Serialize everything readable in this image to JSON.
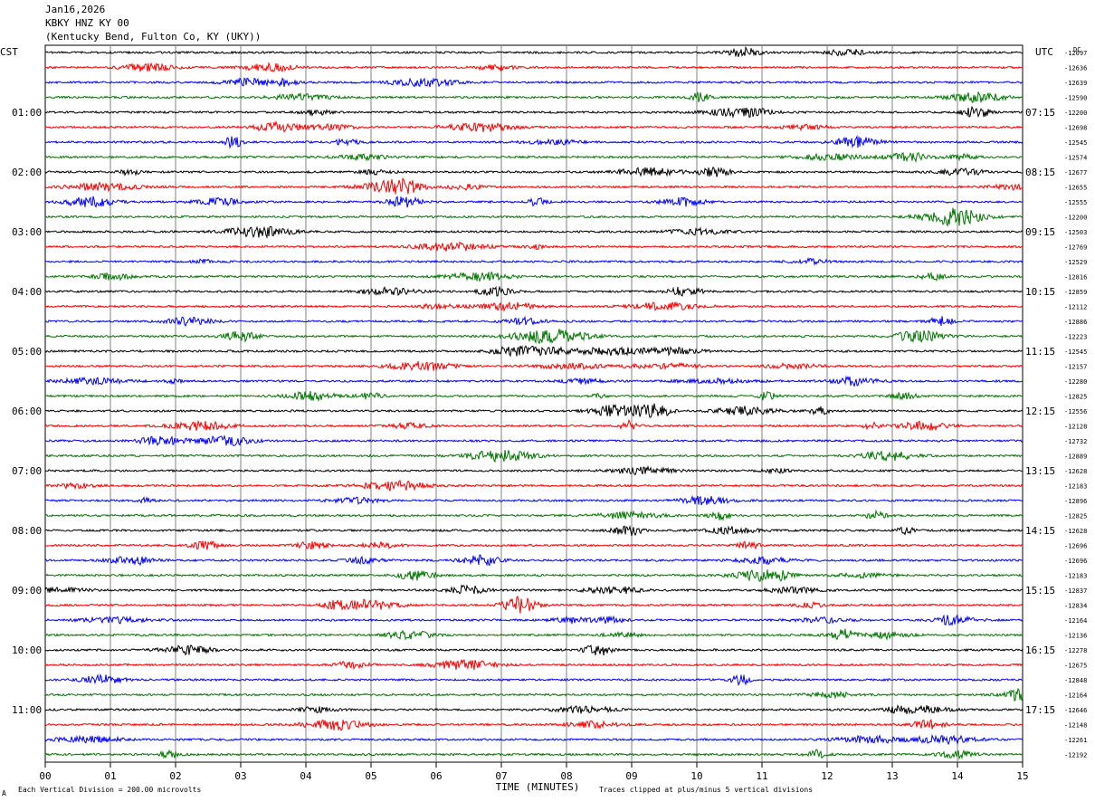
{
  "header": {
    "date": "Jan16,2026",
    "station": "KBKY HNZ KY 00",
    "location": "(Kentucky Bend, Fulton Co, KY (UKY))"
  },
  "left_timezone": "CST",
  "right_timezone": "UTC",
  "corner_label": "DC",
  "footer": {
    "scale_note": "Each Vertical Division =  200.00 microvolts",
    "clip_note": "Traces clipped at plus/minus 5 vertical divisions",
    "corner_mark": "A"
  },
  "colors": {
    "trace_cycle": [
      "#000000",
      "#ff0000",
      "#0000ff",
      "#007700"
    ],
    "grid": "#808080"
  },
  "chart_data": {
    "type": "line",
    "xlabel": "TIME (MINUTES)",
    "x_ticks": [
      "00",
      "01",
      "02",
      "03",
      "04",
      "05",
      "06",
      "07",
      "08",
      "09",
      "10",
      "11",
      "12",
      "13",
      "14",
      "15"
    ],
    "xlim": [
      0,
      15
    ],
    "minutes_per_line": 15,
    "left_hour_labels": [
      "01:00",
      "02:00",
      "03:00",
      "04:00",
      "05:00",
      "06:00",
      "07:00",
      "08:00",
      "09:00",
      "10:00",
      "11:00"
    ],
    "right_hour_labels": [
      "07:15",
      "08:15",
      "09:15",
      "10:15",
      "11:15",
      "12:15",
      "13:15",
      "14:15",
      "15:15",
      "16:15",
      "17:15"
    ],
    "line_dc_offsets": [
      "-12097",
      "-12636",
      "-12639",
      "-12590",
      "-12200",
      "-12698",
      "-12545",
      "-12574",
      "-12677",
      "-12655",
      "-12555",
      "-12200",
      "-12503",
      "-12769",
      "-12529",
      "-12816",
      "-12859",
      "-12112",
      "-12886",
      "-12223",
      "-12545",
      "-12157",
      "-12280",
      "-12825",
      "-12556",
      "-12128",
      "-12732",
      "-12889",
      "-12628",
      "-12183",
      "-12896",
      "-12825",
      "-12628",
      "-12696",
      "-12696",
      "-12183",
      "-12837",
      "-12834",
      "-12164",
      "-12136",
      "-12278",
      "-12675",
      "-12848",
      "-12164",
      "-12646",
      "-12148",
      "-12261",
      "-12192"
    ]
  }
}
